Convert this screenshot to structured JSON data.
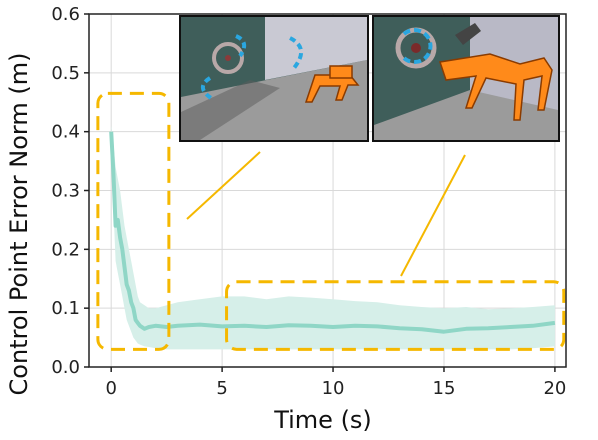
{
  "chart_data": {
    "type": "line",
    "title": "",
    "xlabel": "Time (s)",
    "ylabel": "Control Point Error Norm (m)",
    "xlim": [
      -1,
      20.5
    ],
    "ylim": [
      0.0,
      0.6
    ],
    "xticks": [
      0,
      5,
      10,
      15,
      20
    ],
    "xtick_labels": [
      "0",
      "5",
      "10",
      "15",
      "20"
    ],
    "yticks": [
      0.0,
      0.1,
      0.2,
      0.3,
      0.4,
      0.5,
      0.6
    ],
    "ytick_labels": [
      "0.0",
      "0.1",
      "0.2",
      "0.3",
      "0.4",
      "0.5",
      "0.6"
    ],
    "grid": true,
    "legend": "none",
    "series": [
      {
        "color": "#8fd6c6",
        "band_color": "#d6efe9",
        "x": [
          0.0,
          0.1,
          0.2,
          0.3,
          0.4,
          0.5,
          0.6,
          0.7,
          0.8,
          0.9,
          1.0,
          1.1,
          1.2,
          1.3,
          1.5,
          1.7,
          2.0,
          2.5,
          3.0,
          4.0,
          5.0,
          6.0,
          7.0,
          8.0,
          9.0,
          10.0,
          11.0,
          12.0,
          13.0,
          14.0,
          15.0,
          16.0,
          17.0,
          18.0,
          19.0,
          20.0
        ],
        "mean": [
          0.4,
          0.33,
          0.24,
          0.25,
          0.22,
          0.2,
          0.17,
          0.14,
          0.13,
          0.11,
          0.1,
          0.08,
          0.075,
          0.07,
          0.065,
          0.068,
          0.07,
          0.068,
          0.07,
          0.072,
          0.069,
          0.07,
          0.068,
          0.071,
          0.07,
          0.068,
          0.07,
          0.069,
          0.066,
          0.064,
          0.06,
          0.065,
          0.066,
          0.068,
          0.07,
          0.075
        ],
        "upper": [
          0.41,
          0.38,
          0.34,
          0.32,
          0.3,
          0.27,
          0.24,
          0.22,
          0.2,
          0.18,
          0.16,
          0.14,
          0.12,
          0.11,
          0.105,
          0.1,
          0.1,
          0.105,
          0.11,
          0.115,
          0.12,
          0.12,
          0.115,
          0.12,
          0.118,
          0.115,
          0.112,
          0.11,
          0.105,
          0.102,
          0.1,
          0.102,
          0.098,
          0.1,
          0.102,
          0.105
        ],
        "lower": [
          0.38,
          0.27,
          0.18,
          0.16,
          0.14,
          0.12,
          0.1,
          0.08,
          0.07,
          0.06,
          0.05,
          0.045,
          0.04,
          0.038,
          0.035,
          0.034,
          0.032,
          0.03,
          0.03,
          0.03,
          0.03,
          0.03,
          0.03,
          0.03,
          0.03,
          0.03,
          0.03,
          0.03,
          0.03,
          0.03,
          0.03,
          0.03,
          0.03,
          0.03,
          0.032,
          0.035
        ]
      }
    ],
    "highlight_boxes": [
      {
        "x": [
          -0.6,
          2.6
        ],
        "y": [
          0.03,
          0.465
        ],
        "color": "#f5b800"
      },
      {
        "x": [
          5.2,
          20.4
        ],
        "y": [
          0.03,
          0.145
        ],
        "color": "#f5b800"
      }
    ],
    "insets": [
      {
        "scene": "quadruped robot approaching valve wheel, dashed arrows indicating rotation"
      },
      {
        "scene": "quadruped robot turning valve wheel with dashed circular arrow"
      }
    ]
  }
}
